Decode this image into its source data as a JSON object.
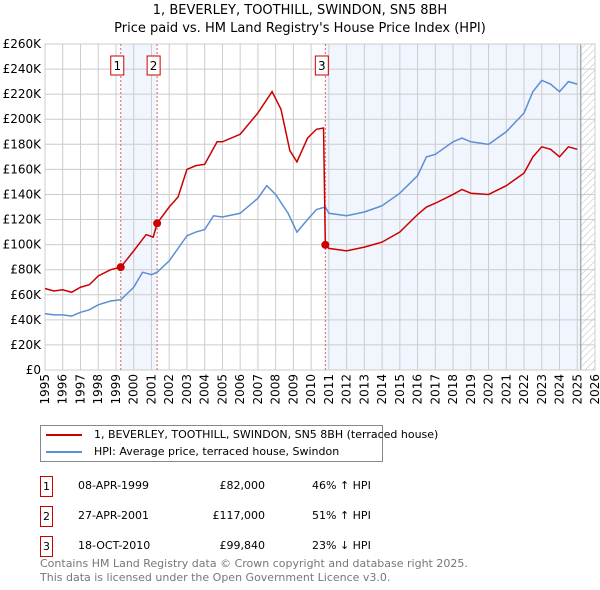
{
  "title": "1, BEVERLEY, TOOTHILL, SWINDON, SN5 8BH",
  "subtitle": "Price paid vs. HM Land Registry's House Price Index (HPI)",
  "chart_data": {
    "type": "line",
    "title": "1, BEVERLEY, TOOTHILL, SWINDON, SN5 8BH",
    "xlim": [
      1995,
      2026
    ],
    "ylim": [
      0,
      260000
    ],
    "x_ticks": [
      "1995",
      "1996",
      "1997",
      "1998",
      "1999",
      "2000",
      "2001",
      "2002",
      "2003",
      "2004",
      "2005",
      "2006",
      "2007",
      "2008",
      "2009",
      "2010",
      "2011",
      "2012",
      "2013",
      "2014",
      "2015",
      "2016",
      "2017",
      "2018",
      "2019",
      "2020",
      "2021",
      "2022",
      "2023",
      "2024",
      "2025",
      "2026"
    ],
    "y_ticks": [
      "£0",
      "£20K",
      "£40K",
      "£60K",
      "£80K",
      "£100K",
      "£120K",
      "£140K",
      "£160K",
      "£180K",
      "£200K",
      "£220K",
      "£240K",
      "£260K"
    ],
    "grid": true,
    "series": [
      {
        "name": "1, BEVERLEY, TOOTHILL, SWINDON, SN5 8BH (terraced house)",
        "color": "#cc0000",
        "points": [
          [
            1995,
            65
          ],
          [
            1995.5,
            63
          ],
          [
            1996,
            64
          ],
          [
            1996.5,
            62
          ],
          [
            1997,
            66
          ],
          [
            1997.5,
            68
          ],
          [
            1998,
            75
          ],
          [
            1998.7,
            80
          ],
          [
            1999.27,
            82
          ],
          [
            2000,
            95
          ],
          [
            2000.7,
            108
          ],
          [
            2001.1,
            106
          ],
          [
            2001.32,
            117
          ],
          [
            2002,
            130
          ],
          [
            2002.5,
            138
          ],
          [
            2003,
            160
          ],
          [
            2003.5,
            163
          ],
          [
            2004,
            164
          ],
          [
            2004.7,
            182
          ],
          [
            2005,
            182
          ],
          [
            2006,
            188
          ],
          [
            2007,
            205
          ],
          [
            2007.8,
            222
          ],
          [
            2008.3,
            208
          ],
          [
            2008.8,
            175
          ],
          [
            2009.2,
            166
          ],
          [
            2009.8,
            185
          ],
          [
            2010.3,
            192
          ],
          [
            2010.7,
            193
          ],
          [
            2010.8,
            99.84
          ],
          [
            2011,
            97
          ],
          [
            2012,
            95
          ],
          [
            2013,
            98
          ],
          [
            2014,
            102
          ],
          [
            2015,
            110
          ],
          [
            2016,
            124
          ],
          [
            2016.5,
            130
          ],
          [
            2017,
            133
          ],
          [
            2018,
            140
          ],
          [
            2018.5,
            144
          ],
          [
            2019,
            141
          ],
          [
            2020,
            140
          ],
          [
            2021,
            147
          ],
          [
            2022,
            157
          ],
          [
            2022.5,
            170
          ],
          [
            2023,
            178
          ],
          [
            2023.5,
            176
          ],
          [
            2024,
            170
          ],
          [
            2024.5,
            178
          ],
          [
            2025,
            176
          ]
        ]
      },
      {
        "name": "HPI: Average price, terraced house, Swindon",
        "color": "#5b8fd4",
        "points": [
          [
            1995,
            45
          ],
          [
            1995.5,
            44
          ],
          [
            1996,
            44
          ],
          [
            1996.5,
            43
          ],
          [
            1997,
            46
          ],
          [
            1997.5,
            48
          ],
          [
            1998,
            52
          ],
          [
            1998.7,
            55
          ],
          [
            1999.27,
            56
          ],
          [
            2000,
            66
          ],
          [
            2000.5,
            78
          ],
          [
            2001,
            76
          ],
          [
            2001.32,
            78
          ],
          [
            2002,
            87
          ],
          [
            2003,
            107
          ],
          [
            2003.5,
            110
          ],
          [
            2004,
            112
          ],
          [
            2004.5,
            123
          ],
          [
            2005,
            122
          ],
          [
            2006,
            125
          ],
          [
            2007,
            137
          ],
          [
            2007.5,
            147
          ],
          [
            2008,
            140
          ],
          [
            2008.7,
            125
          ],
          [
            2009.2,
            110
          ],
          [
            2009.8,
            120
          ],
          [
            2010.3,
            128
          ],
          [
            2010.8,
            130
          ],
          [
            2011,
            125
          ],
          [
            2012,
            123
          ],
          [
            2013,
            126
          ],
          [
            2014,
            131
          ],
          [
            2015,
            141
          ],
          [
            2016,
            155
          ],
          [
            2016.5,
            170
          ],
          [
            2017,
            172
          ],
          [
            2018,
            182
          ],
          [
            2018.5,
            185
          ],
          [
            2019,
            182
          ],
          [
            2020,
            180
          ],
          [
            2021,
            190
          ],
          [
            2022,
            205
          ],
          [
            2022.5,
            222
          ],
          [
            2023,
            231
          ],
          [
            2023.5,
            228
          ],
          [
            2024,
            222
          ],
          [
            2024.5,
            230
          ],
          [
            2025,
            228
          ]
        ]
      }
    ],
    "sales": [
      {
        "label": "1",
        "x": 1999.27,
        "y": 82
      },
      {
        "label": "2",
        "x": 2001.32,
        "y": 117
      },
      {
        "label": "3",
        "x": 2010.8,
        "y": 99.84
      }
    ],
    "shaded": [
      [
        1999.27,
        2001.32
      ],
      [
        2010.8,
        2025.2
      ]
    ],
    "hatched_from": 2025.2,
    "legend_placement": "below"
  },
  "transactions": [
    {
      "num": "1",
      "date": "08-APR-1999",
      "price": "£82,000",
      "hpi": "46% ↑ HPI"
    },
    {
      "num": "2",
      "date": "27-APR-2001",
      "price": "£117,000",
      "hpi": "51% ↑ HPI"
    },
    {
      "num": "3",
      "date": "18-OCT-2010",
      "price": "£99,840",
      "hpi": "23% ↓ HPI"
    }
  ],
  "footer": [
    "Contains HM Land Registry data © Crown copyright and database right 2025.",
    "This data is licensed under the Open Government Licence v3.0."
  ]
}
